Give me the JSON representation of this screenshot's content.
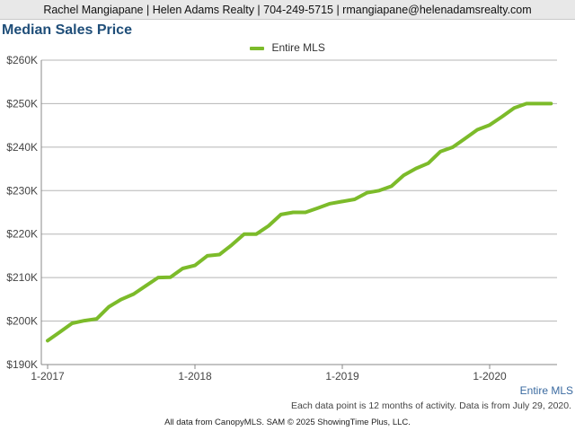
{
  "header": {
    "contact": "Rachel Mangiapane | Helen Adams Realty | 704-249-5715 | rmangiapane@helenadamsrealty.com"
  },
  "colors": {
    "series": "#7cbb2a",
    "grid": "#b5b5b5",
    "axis": "#888888"
  },
  "chart_data": {
    "type": "line",
    "title": "Median Sales Price",
    "xlabel": "",
    "ylabel": "",
    "ylim": [
      190000,
      260000
    ],
    "yticks": [
      190000,
      200000,
      210000,
      220000,
      230000,
      240000,
      250000,
      260000
    ],
    "ytick_labels": [
      "$190K",
      "$200K",
      "$210K",
      "$220K",
      "$230K",
      "$240K",
      "$250K",
      "$260K"
    ],
    "xticks": [
      "1-2017",
      "1-2018",
      "1-2019",
      "1-2020"
    ],
    "grid": true,
    "legend_position": "top-center",
    "series": [
      {
        "name": "Entire MLS",
        "x": [
          "1-2017",
          "2-2017",
          "3-2017",
          "4-2017",
          "5-2017",
          "6-2017",
          "7-2017",
          "8-2017",
          "9-2017",
          "10-2017",
          "11-2017",
          "12-2017",
          "1-2018",
          "2-2018",
          "3-2018",
          "4-2018",
          "5-2018",
          "6-2018",
          "7-2018",
          "8-2018",
          "9-2018",
          "10-2018",
          "11-2018",
          "12-2018",
          "1-2019",
          "2-2019",
          "3-2019",
          "4-2019",
          "5-2019",
          "6-2019",
          "7-2019",
          "8-2019",
          "9-2019",
          "10-2019",
          "11-2019",
          "12-2019",
          "1-2020",
          "2-2020",
          "3-2020",
          "4-2020",
          "5-2020",
          "6-2020"
        ],
        "values": [
          195500,
          197500,
          199500,
          200100,
          200500,
          203300,
          205000,
          206200,
          208100,
          210000,
          210100,
          212100,
          212800,
          215000,
          215300,
          217500,
          220000,
          220000,
          221900,
          224500,
          225000,
          225000,
          226000,
          227000,
          227500,
          228000,
          229500,
          230000,
          231000,
          233500,
          235100,
          236300,
          239000,
          240000,
          242000,
          244000,
          245100,
          247000,
          249000,
          250000,
          250000,
          250000
        ]
      }
    ]
  },
  "series_tag": "Entire MLS",
  "footnote": "Each data point is 12 months of activity. Data is from July 29, 2020.",
  "credits": "All data from CanopyMLS. SAM © 2025 ShowingTime Plus, LLC."
}
